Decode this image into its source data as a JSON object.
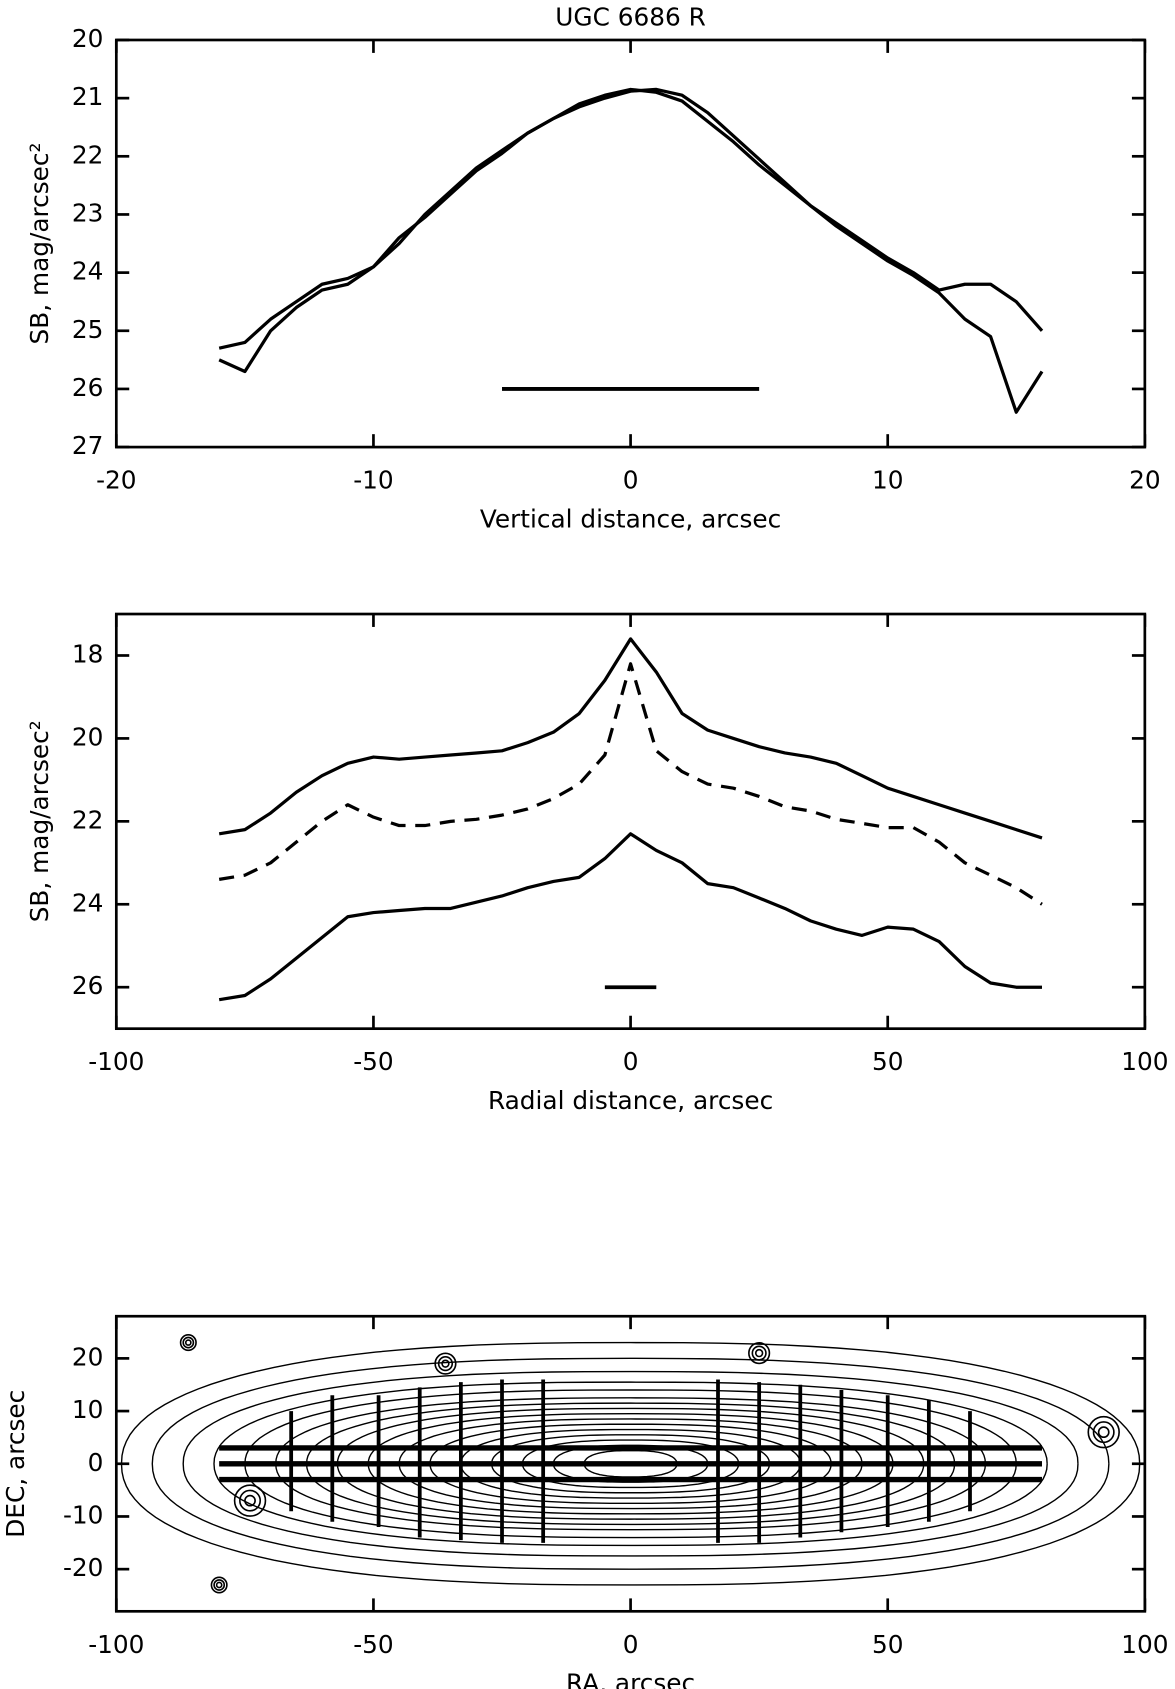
{
  "chart_data": [
    {
      "type": "line",
      "title": "UGC 6686 R",
      "xlabel": "Vertical distance, arcsec",
      "ylabel": "SB, mag/arcsec²",
      "xlim": [
        -20,
        20
      ],
      "xticks": [
        -20,
        -10,
        0,
        10,
        20
      ],
      "ylim": [
        27,
        20
      ],
      "yticks": [
        20,
        21,
        22,
        23,
        24,
        25,
        26,
        27
      ],
      "x": [
        -16,
        -15,
        -14,
        -13,
        -12,
        -11,
        -10,
        -9,
        -8,
        -7,
        -6,
        -5,
        -4,
        -3,
        -2,
        -1,
        0,
        1,
        2,
        3,
        4,
        5,
        6,
        7,
        8,
        9,
        10,
        11,
        12,
        13,
        14,
        15,
        16
      ],
      "series": [
        {
          "color": "#000000",
          "linestyle": "solid",
          "values": [
            25.5,
            25.7,
            25.0,
            24.6,
            24.3,
            24.2,
            23.9,
            23.5,
            23.0,
            22.6,
            22.2,
            21.9,
            21.6,
            21.35,
            21.15,
            21.0,
            20.88,
            20.85,
            20.95,
            21.25,
            21.65,
            22.05,
            22.45,
            22.85,
            23.15,
            23.45,
            23.75,
            24.0,
            24.3,
            24.2,
            24.2,
            24.5,
            25.0
          ]
        },
        {
          "color": "#000000",
          "linestyle": "solid",
          "values": [
            25.3,
            25.2,
            24.8,
            24.5,
            24.2,
            24.1,
            23.9,
            23.4,
            23.05,
            22.65,
            22.25,
            21.95,
            21.6,
            21.35,
            21.1,
            20.95,
            20.85,
            20.9,
            21.05,
            21.4,
            21.75,
            22.15,
            22.5,
            22.85,
            23.2,
            23.5,
            23.8,
            24.05,
            24.35,
            24.8,
            25.1,
            26.4,
            25.7
          ]
        }
      ],
      "scale_bar": {
        "x": [
          -5,
          5
        ],
        "y": 26
      }
    },
    {
      "type": "line",
      "xlabel": "Radial distance, arcsec",
      "ylabel": "SB, mag/arcsec²",
      "xlim": [
        -100,
        100
      ],
      "xticks": [
        -100,
        -50,
        0,
        50,
        100
      ],
      "ylim": [
        27,
        17
      ],
      "yticks": [
        18,
        20,
        22,
        24,
        26
      ],
      "x": [
        -80,
        -75,
        -70,
        -65,
        -60,
        -55,
        -50,
        -45,
        -40,
        -35,
        -30,
        -25,
        -20,
        -15,
        -10,
        -5,
        0,
        5,
        10,
        15,
        20,
        25,
        30,
        35,
        40,
        45,
        50,
        55,
        60,
        65,
        70,
        75,
        80
      ],
      "series": [
        {
          "color": "#000000",
          "linestyle": "solid",
          "values": [
            22.3,
            22.2,
            21.8,
            21.3,
            20.9,
            20.6,
            20.45,
            20.5,
            20.45,
            20.4,
            20.35,
            20.3,
            20.1,
            19.85,
            19.4,
            18.6,
            17.6,
            18.4,
            19.4,
            19.8,
            20.0,
            20.2,
            20.35,
            20.45,
            20.6,
            20.9,
            21.2,
            21.4,
            21.6,
            21.8,
            22.0,
            22.2,
            22.4
          ]
        },
        {
          "color": "#000000",
          "linestyle": "dashed",
          "values": [
            23.4,
            23.3,
            23.0,
            22.5,
            22.0,
            21.6,
            21.9,
            22.1,
            22.1,
            22.0,
            21.95,
            21.85,
            21.7,
            21.45,
            21.1,
            20.4,
            18.2,
            20.3,
            20.8,
            21.1,
            21.2,
            21.4,
            21.65,
            21.75,
            21.95,
            22.05,
            22.15,
            22.15,
            22.5,
            23.0,
            23.3,
            23.6,
            24.0
          ]
        },
        {
          "color": "#000000",
          "linestyle": "solid",
          "values": [
            26.3,
            26.2,
            25.8,
            25.3,
            24.8,
            24.3,
            24.2,
            24.15,
            24.1,
            24.1,
            23.95,
            23.8,
            23.6,
            23.45,
            23.35,
            22.9,
            22.3,
            22.7,
            23.0,
            23.5,
            23.6,
            23.85,
            24.1,
            24.4,
            24.6,
            24.75,
            24.55,
            24.6,
            24.9,
            25.5,
            25.9,
            26.0,
            26.0
          ]
        }
      ],
      "scale_bar": {
        "x": [
          -5,
          5
        ],
        "y": 26
      }
    },
    {
      "type": "contour",
      "xlabel": "RA, arcsec",
      "ylabel": "DEC, arcsec",
      "xlim": [
        -100,
        100
      ],
      "xticks": [
        -100,
        -50,
        0,
        50,
        100
      ],
      "ylim": [
        -28,
        28
      ],
      "yticks": [
        -20,
        -10,
        0,
        10,
        20
      ],
      "contours": [
        {
          "a": 99,
          "b": 23
        },
        {
          "a": 93,
          "b": 20
        },
        {
          "a": 87,
          "b": 17.5
        },
        {
          "a": 81,
          "b": 15.5
        },
        {
          "a": 75,
          "b": 14
        },
        {
          "a": 69,
          "b": 12.5
        },
        {
          "a": 63,
          "b": 11.5
        },
        {
          "a": 57,
          "b": 10.5
        },
        {
          "a": 51,
          "b": 9.5
        },
        {
          "a": 45,
          "b": 8.5
        },
        {
          "a": 39,
          "b": 7.5
        },
        {
          "a": 33,
          "b": 6.5
        },
        {
          "a": 27,
          "b": 5.5
        },
        {
          "a": 21,
          "b": 4.5
        },
        {
          "a": 15,
          "b": 3.5
        },
        {
          "a": 9,
          "b": 2.5
        }
      ],
      "stars": [
        {
          "x": -74,
          "y": -7,
          "r": 3
        },
        {
          "x": 92,
          "y": 6,
          "r": 3
        },
        {
          "x": 25,
          "y": 21,
          "r": 2
        },
        {
          "x": -36,
          "y": 19,
          "r": 2
        },
        {
          "x": -86,
          "y": 23,
          "r": 1.5
        },
        {
          "x": -80,
          "y": -23,
          "r": 1.5
        }
      ],
      "horizontal_cuts": [
        {
          "y": 3,
          "x": [
            -80,
            80
          ]
        },
        {
          "y": 0,
          "x": [
            -80,
            80
          ]
        },
        {
          "y": -3,
          "x": [
            -80,
            80
          ]
        }
      ],
      "vertical_cuts": [
        {
          "x": -66,
          "y": [
            -9,
            10
          ]
        },
        {
          "x": -58,
          "y": [
            -11,
            13
          ]
        },
        {
          "x": -49,
          "y": [
            -12,
            13
          ]
        },
        {
          "x": -41,
          "y": [
            -14,
            14.5
          ]
        },
        {
          "x": -33,
          "y": [
            -14.5,
            15.5
          ]
        },
        {
          "x": -25,
          "y": [
            -15,
            16
          ]
        },
        {
          "x": -17,
          "y": [
            -15,
            16
          ]
        },
        {
          "x": 17,
          "y": [
            -15,
            16
          ]
        },
        {
          "x": 25,
          "y": [
            -15,
            15.5
          ]
        },
        {
          "x": 33,
          "y": [
            -14,
            15
          ]
        },
        {
          "x": 41,
          "y": [
            -13,
            14
          ]
        },
        {
          "x": 50,
          "y": [
            -12,
            13
          ]
        },
        {
          "x": 58,
          "y": [
            -11,
            12
          ]
        },
        {
          "x": 66,
          "y": [
            -9,
            10
          ]
        }
      ]
    }
  ]
}
